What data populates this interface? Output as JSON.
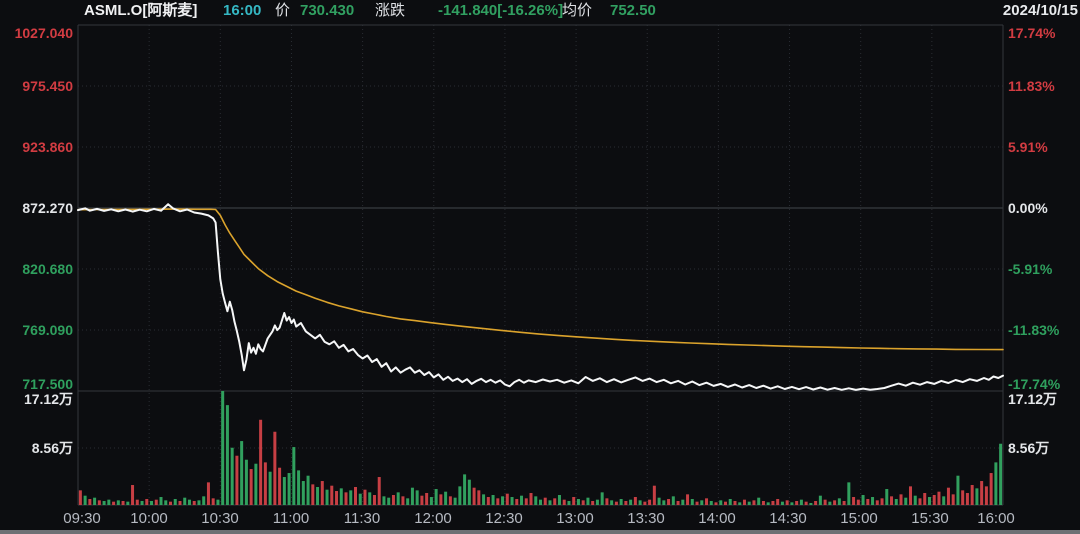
{
  "header": {
    "symbol": "ASML.O[阿斯麦]",
    "time": "16:00",
    "price_label": "价",
    "price": "730.430",
    "change_label": "涨跌",
    "change": "-141.840[-16.26%]",
    "avg_label": "均价",
    "avg_price": "752.50",
    "date": "2024/10/15"
  },
  "colors": {
    "background": "#0c0d10",
    "up_red": "#d23c42",
    "down_green": "#2fa05e",
    "bar_red": "#c73f44",
    "bar_green": "#31a05e",
    "price_line": "#f6f7f8",
    "avg_line": "#dba32c",
    "time_cyan": "#35b8c4",
    "grid": "#2a2d33",
    "zero_line": "#42464d",
    "border": "#33363c",
    "axis_text": "#e4e6e9",
    "time_text": "#b6bac2"
  },
  "axes": {
    "left": [
      "1027.040",
      "975.450",
      "923.860",
      "872.270",
      "820.680",
      "769.090",
      "717.500"
    ],
    "right": [
      "17.74%",
      "11.83%",
      "5.91%",
      "0.00%",
      "-5.91%",
      "-11.83%",
      "-17.74%"
    ],
    "volume_left": [
      "17.12万",
      "8.56万"
    ],
    "volume_right": [
      "17.12万",
      "8.56万"
    ],
    "time": [
      "09:30",
      "10:00",
      "10:30",
      "11:00",
      "11:30",
      "12:00",
      "12:30",
      "13:00",
      "13:30",
      "14:00",
      "14:30",
      "15:00",
      "15:30",
      "16:00"
    ]
  },
  "chart_data": {
    "type": "line",
    "title": "ASML.O 阿斯麦 intraday price 2024/10/15",
    "x_unit": "minutes after 09:30, session 09:30-16:00",
    "x_range": [
      0,
      390
    ],
    "grid": "dotted",
    "price_axis": {
      "base_price": 872.27,
      "min": 717.5,
      "max": 1027.04,
      "levels": [
        1027.04,
        975.45,
        923.86,
        872.27,
        820.68,
        769.09,
        717.5
      ]
    },
    "pct_axis": {
      "levels": [
        17.74,
        11.83,
        5.91,
        0.0,
        -5.91,
        -11.83,
        -17.74
      ]
    },
    "volume_axis": {
      "unit": "万",
      "levels": [
        17.12,
        8.56,
        0
      ]
    },
    "series": [
      {
        "name": "price",
        "color": "#f6f7f8",
        "t": [
          0,
          3,
          5,
          8,
          11,
          14,
          17,
          20,
          23,
          26,
          29,
          32,
          35,
          38,
          40,
          43,
          46,
          49,
          52,
          55,
          57,
          58,
          59,
          60,
          61,
          62,
          63,
          64,
          65,
          66,
          67,
          68,
          69,
          70,
          71,
          72,
          73,
          74,
          75,
          76,
          77,
          78,
          80,
          82,
          83,
          84,
          85,
          87,
          88,
          89,
          90,
          91,
          92,
          94,
          96,
          98,
          100,
          102,
          104,
          106,
          108,
          110,
          112,
          114,
          116,
          118,
          120,
          122,
          124,
          126,
          128,
          130,
          132,
          134,
          136,
          138,
          140,
          142,
          144,
          146,
          148,
          150,
          152,
          154,
          156,
          158,
          160,
          162,
          164,
          166,
          168,
          170,
          172,
          174,
          176,
          178,
          180,
          182,
          184,
          186,
          188,
          190,
          193,
          196,
          199,
          202,
          205,
          208,
          211,
          214,
          217,
          220,
          223,
          226,
          229,
          232,
          235,
          238,
          241,
          244,
          247,
          250,
          253,
          256,
          259,
          262,
          265,
          268,
          271,
          274,
          277,
          280,
          283,
          286,
          289,
          292,
          295,
          298,
          301,
          304,
          307,
          310,
          313,
          316,
          319,
          322,
          325,
          328,
          331,
          334,
          337,
          340,
          343,
          346,
          349,
          352,
          355,
          358,
          361,
          364,
          367,
          370,
          373,
          376,
          379,
          382,
          384,
          386,
          388,
          390
        ],
        "values": [
          870.5,
          872,
          870,
          871.5,
          869.8,
          871.2,
          869.5,
          871,
          869.2,
          870.8,
          869.5,
          871.5,
          870,
          875.5,
          872,
          869.5,
          871,
          868.5,
          867.5,
          866,
          863.5,
          860,
          835,
          812,
          800,
          792,
          785,
          793,
          786,
          776,
          768,
          759,
          748,
          735,
          744,
          758,
          750,
          754,
          749,
          757,
          753,
          751,
          762,
          768,
          773,
          769,
          771,
          783.5,
          777,
          780,
          775,
          778,
          772,
          775,
          768,
          765,
          762,
          765,
          759,
          757,
          759.5,
          754,
          756.5,
          751,
          753,
          748,
          745,
          747.5,
          742,
          744.5,
          738,
          741,
          734,
          737.5,
          733,
          735.5,
          737.5,
          733,
          735,
          731,
          733.5,
          729,
          731.5,
          727,
          729.5,
          726,
          728,
          725,
          727.5,
          723.5,
          726,
          727.8,
          725,
          727,
          724.5,
          726.5,
          723,
          721.5,
          725,
          727,
          724.5,
          726.5,
          725,
          727.2,
          725.5,
          727,
          724.5,
          726.5,
          724,
          729.3,
          726,
          728.2,
          725,
          727.5,
          724.8,
          727,
          729,
          726,
          728,
          725,
          727,
          724,
          726,
          723,
          725.5,
          722.5,
          724.5,
          721.8,
          723.5,
          721,
          723,
          720.5,
          722.5,
          720,
          722,
          719.5,
          721.5,
          719.2,
          721,
          719,
          720.8,
          718.8,
          720.5,
          718.6,
          720,
          718.5,
          719.8,
          718.4,
          719.5,
          718.6,
          719.2,
          720,
          722,
          723.8,
          722,
          724.5,
          722.8,
          725,
          723.5,
          726,
          724.3,
          726.8,
          725,
          727.5,
          726,
          728.5,
          727,
          729.8,
          728.5,
          730.43
        ]
      },
      {
        "name": "avg_price_均价",
        "color": "#dba32c",
        "t": [
          0,
          10,
          25,
          40,
          50,
          56,
          58,
          60,
          62,
          64,
          66,
          68,
          70,
          73,
          76,
          80,
          84,
          88,
          92,
          96,
          100,
          105,
          110,
          115,
          120,
          125,
          130,
          136,
          142,
          148,
          155,
          162,
          170,
          178,
          186,
          194,
          202,
          210,
          218,
          226,
          234,
          242,
          250,
          258,
          266,
          274,
          282,
          290,
          298,
          306,
          314,
          322,
          330,
          338,
          346,
          354,
          362,
          370,
          380,
          390
        ],
        "values": [
          870.8,
          871,
          871.1,
          871.3,
          871.2,
          871.2,
          871,
          866,
          858,
          851,
          845,
          839,
          833,
          827,
          821,
          815,
          810,
          806,
          802,
          799,
          796,
          792.5,
          789.5,
          787,
          784.5,
          782.5,
          780.5,
          778.5,
          777,
          775.5,
          773.8,
          772.2,
          770.5,
          768.8,
          767.2,
          765.8,
          764.5,
          763.3,
          762.2,
          761.2,
          760.3,
          759.5,
          758.8,
          758.1,
          757.5,
          756.9,
          756.4,
          755.9,
          755.4,
          755,
          754.6,
          754.2,
          753.9,
          753.6,
          753.3,
          753.1,
          752.9,
          752.7,
          752.6,
          752.5
        ]
      }
    ],
    "volume": {
      "unit": "万",
      "scale_max": 17.12,
      "t_step_min": 2,
      "values": [
        2.2,
        1.4,
        0.9,
        1.1,
        0.7,
        0.6,
        0.8,
        0.5,
        0.7,
        0.6,
        0.5,
        3.0,
        0.8,
        0.6,
        0.9,
        0.6,
        0.8,
        1.2,
        0.7,
        0.5,
        0.9,
        0.6,
        1.1,
        0.8,
        0.6,
        0.7,
        1.3,
        3.4,
        1.0,
        0.8,
        17.12,
        15.0,
        8.6,
        7.4,
        9.6,
        6.8,
        5.4,
        6.2,
        12.8,
        6.4,
        5.0,
        11.0,
        5.6,
        4.2,
        4.8,
        8.7,
        5.2,
        3.6,
        4.4,
        3.1,
        2.7,
        3.6,
        2.3,
        2.9,
        2.1,
        2.5,
        1.9,
        2.2,
        2.7,
        1.7,
        2.3,
        1.9,
        1.5,
        4.2,
        1.3,
        1.1,
        1.5,
        1.9,
        1.3,
        1.0,
        2.6,
        2.2,
        1.4,
        1.8,
        1.2,
        2.4,
        1.6,
        2.0,
        1.3,
        1.1,
        2.8,
        4.6,
        3.8,
        2.6,
        2.2,
        1.6,
        1.2,
        1.5,
        1.0,
        1.3,
        1.7,
        1.2,
        0.9,
        1.4,
        1.0,
        1.8,
        1.3,
        0.8,
        1.1,
        0.7,
        1.0,
        1.5,
        0.8,
        0.6,
        1.2,
        0.9,
        0.7,
        1.1,
        0.6,
        0.8,
        1.9,
        1.0,
        0.7,
        0.5,
        0.9,
        0.6,
        0.8,
        1.2,
        0.7,
        0.5,
        0.8,
        2.9,
        1.1,
        0.7,
        0.9,
        1.3,
        0.6,
        0.8,
        1.6,
        0.9,
        0.5,
        0.7,
        1.0,
        0.6,
        0.4,
        0.7,
        0.5,
        0.9,
        0.6,
        0.4,
        0.8,
        0.5,
        0.7,
        1.1,
        0.6,
        0.4,
        0.6,
        0.9,
        0.5,
        0.7,
        0.4,
        0.6,
        0.8,
        0.5,
        0.3,
        0.6,
        1.4,
        0.8,
        0.5,
        0.7,
        1.0,
        0.6,
        3.4,
        1.2,
        0.8,
        1.5,
        0.9,
        1.2,
        0.7,
        1.0,
        2.4,
        1.3,
        0.9,
        1.6,
        1.1,
        2.8,
        1.4,
        1.0,
        1.8,
        1.2,
        1.5,
        2.0,
        1.3,
        2.6,
        1.6,
        4.4,
        2.2,
        1.8,
        3.0,
        2.5,
        3.6,
        2.8,
        4.8,
        6.4,
        9.2
      ],
      "colors": "rgrgrggrgrgrrgrgrggrgrggrggrrggggrggrgrrgrrggggggrgrgrrgrgrgrgrrggrgrgggrrggrgrggggrrgrgrgrgrgrrggrgrgrgrgrgrggrgrgrgrgrrrggrgrgrgrgrgrgrgrgrgrgrgrrgrgrgrgrgrgrgrgrrgrgrrgrgrgrgrrgrrgrrgrrrgrrr"
    }
  }
}
